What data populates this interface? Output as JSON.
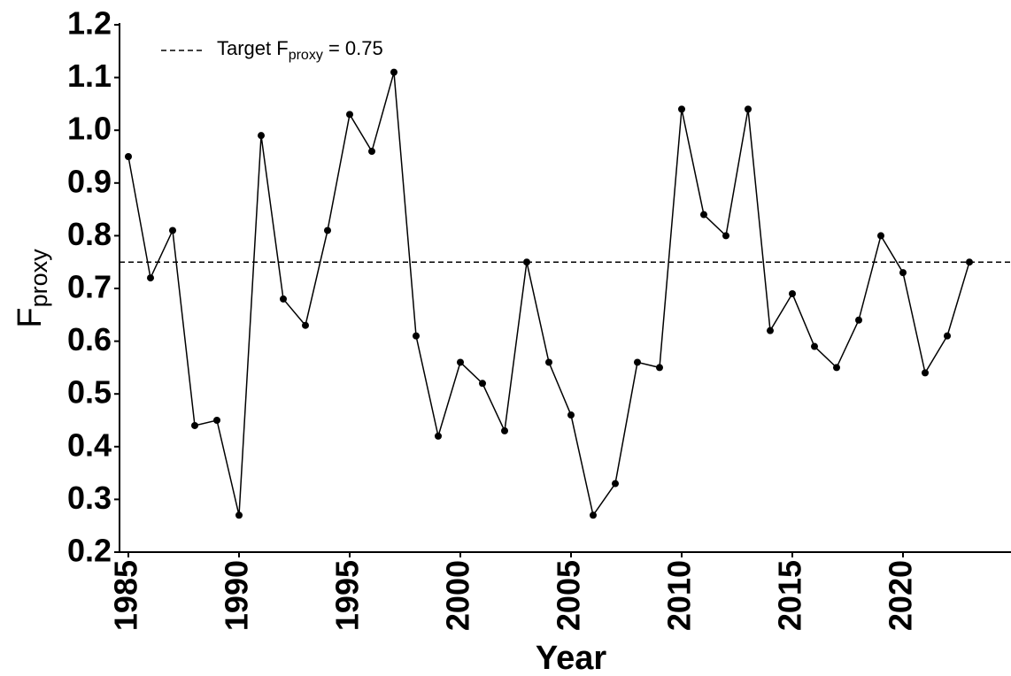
{
  "chart_data": {
    "type": "line",
    "xlabel": "Year",
    "ylabel": "F",
    "ylabel_sub": "proxy",
    "x": [
      1985,
      1986,
      1987,
      1988,
      1989,
      1990,
      1991,
      1992,
      1993,
      1994,
      1995,
      1996,
      1997,
      1998,
      1999,
      2000,
      2001,
      2002,
      2003,
      2004,
      2005,
      2006,
      2007,
      2008,
      2009,
      2010,
      2011,
      2012,
      2013,
      2014,
      2015,
      2016,
      2017,
      2018,
      2019,
      2020,
      2021,
      2022,
      2023
    ],
    "series": [
      {
        "color": "#000000",
        "values": [
          0.95,
          0.72,
          0.81,
          0.44,
          0.45,
          0.27,
          0.99,
          0.68,
          0.63,
          0.81,
          1.03,
          0.96,
          1.11,
          0.61,
          0.42,
          0.56,
          0.52,
          0.43,
          0.75,
          0.56,
          0.46,
          0.27,
          0.33,
          0.56,
          0.55,
          1.04,
          0.84,
          0.8,
          1.04,
          0.62,
          0.69,
          0.59,
          0.55,
          0.64,
          0.8,
          0.73,
          0.54,
          0.61,
          0.75
        ]
      }
    ],
    "reference_line": {
      "value": 0.75,
      "label_prefix": "Target F",
      "label_sub": "proxy",
      "label_suffix": " = 0.75",
      "color": "#000000"
    },
    "xlim": [
      1984.6,
      2024.88
    ],
    "ylim": [
      0.2,
      1.2
    ],
    "xticks": [
      1985,
      1990,
      1995,
      2000,
      2005,
      2010,
      2015,
      2020
    ],
    "yticks": [
      0.2,
      0.3,
      0.4,
      0.5,
      0.6,
      0.7,
      0.8,
      0.9,
      {
        "value": 1,
        "label": "1.0"
      },
      1.1,
      1.2
    ],
    "grid": false
  }
}
